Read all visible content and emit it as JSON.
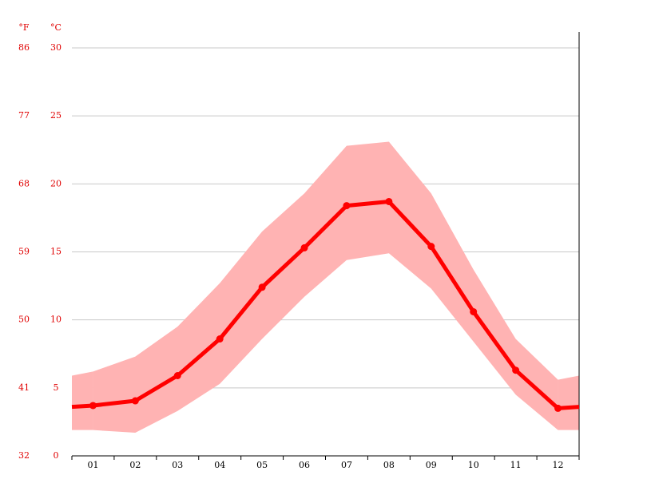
{
  "chart_data": {
    "type": "climate",
    "y_unit_left": "°F",
    "y_unit_right": "°C",
    "categories": [
      "01",
      "02",
      "03",
      "04",
      "05",
      "06",
      "07",
      "08",
      "09",
      "10",
      "11",
      "12"
    ],
    "series": [
      {
        "name": "mean",
        "color": "#ff0000",
        "values": [
          3.7,
          4.05,
          5.9,
          8.6,
          12.4,
          15.3,
          18.4,
          18.7,
          15.4,
          10.6,
          6.3,
          3.5
        ]
      },
      {
        "name": "max",
        "color": "#ffb3b3",
        "values": [
          6.2,
          7.3,
          9.5,
          12.7,
          16.5,
          19.3,
          22.8,
          23.1,
          19.3,
          13.7,
          8.6,
          5.6
        ]
      },
      {
        "name": "min",
        "color": "#ffb3b3",
        "values": [
          1.9,
          1.7,
          3.3,
          5.3,
          8.6,
          11.7,
          14.4,
          14.9,
          12.3,
          8.4,
          4.5,
          1.9
        ]
      }
    ],
    "ylim": [
      0,
      30
    ],
    "yticks": [
      0,
      5,
      10,
      15,
      20,
      25,
      30
    ],
    "fticks": [
      32,
      41,
      50,
      59,
      68,
      77,
      86
    ],
    "grid": true
  }
}
